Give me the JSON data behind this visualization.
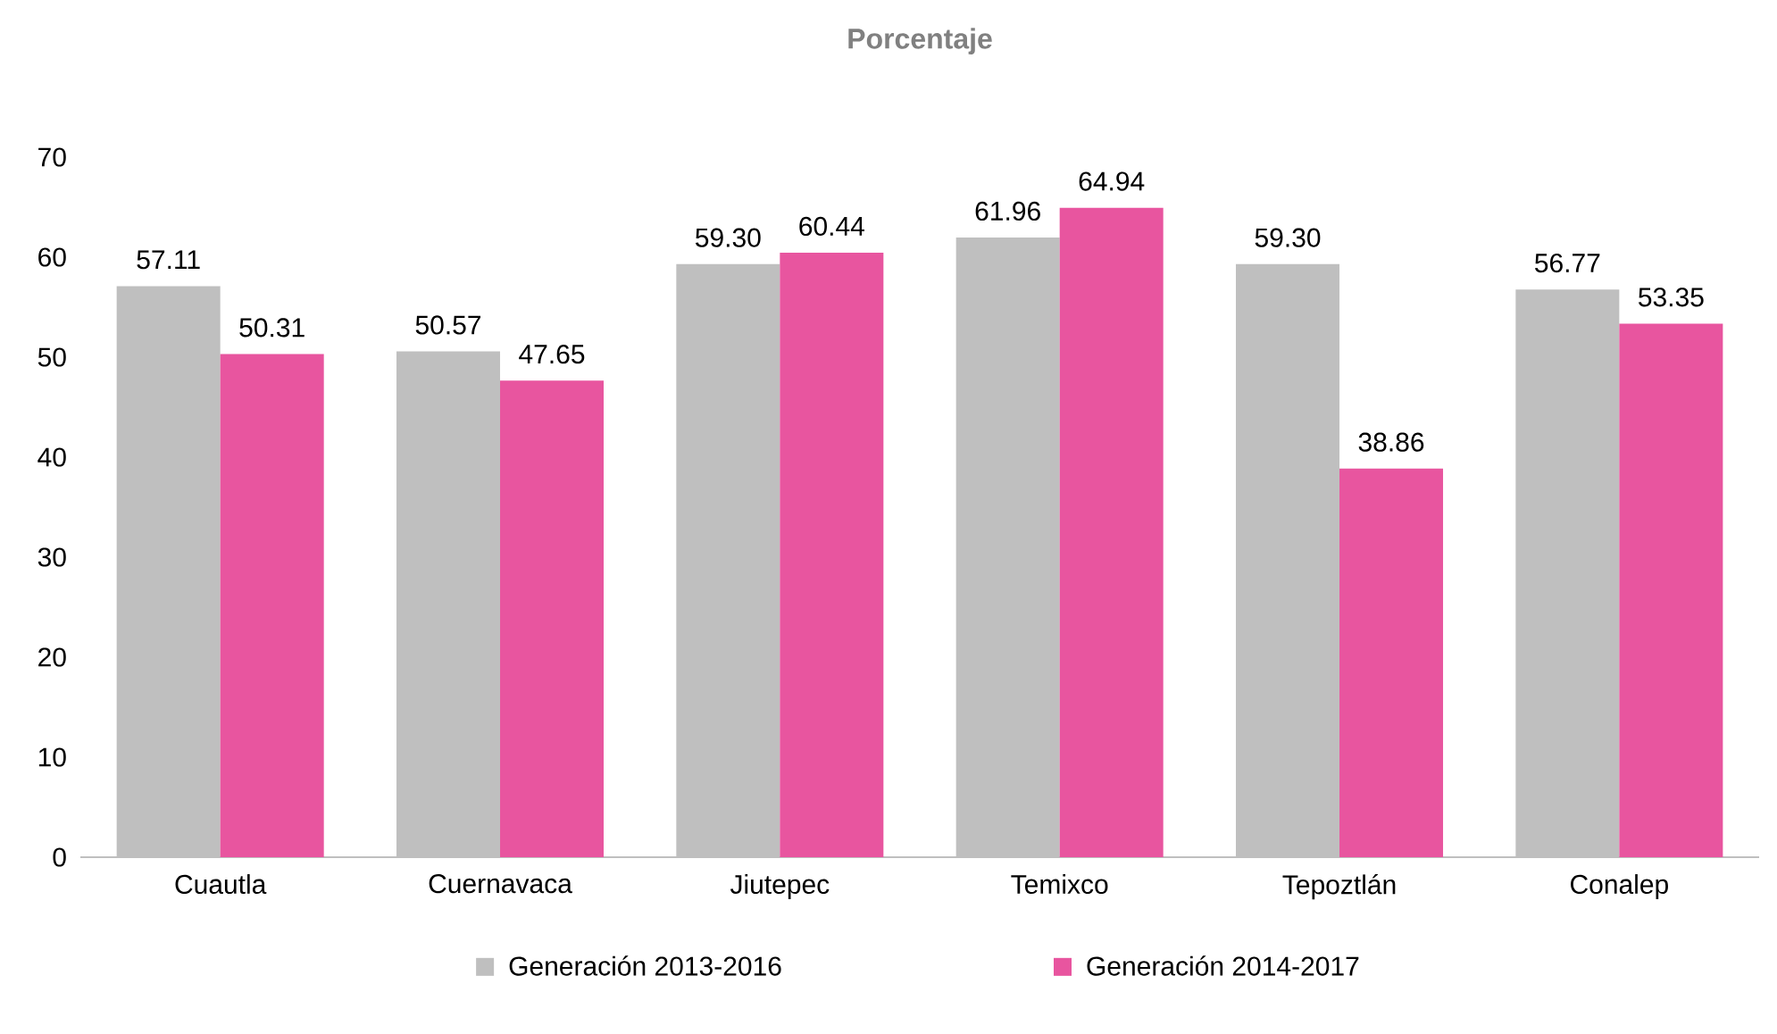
{
  "chart_data": {
    "type": "bar",
    "title": "Porcentaje",
    "categories": [
      "Cuautla",
      "Cuernavaca",
      "Jiutepec",
      "Temixco",
      "Tepoztlán",
      "Conalep"
    ],
    "series": [
      {
        "name": "Generación 2013-2016",
        "color": "#bfbfbf",
        "values": [
          57.11,
          50.57,
          59.3,
          61.96,
          59.3,
          56.77
        ],
        "value_labels": [
          "57.11",
          "50.57",
          "59.30",
          "61.96",
          "59.30",
          "56.77"
        ]
      },
      {
        "name": "Generación 2014-2017",
        "color": "#e8559f",
        "values": [
          50.31,
          47.65,
          60.44,
          64.94,
          38.86,
          53.35
        ],
        "value_labels": [
          "50.31",
          "47.65",
          "60.44",
          "64.94",
          "38.86",
          "53.35"
        ]
      }
    ],
    "ylim": [
      0,
      70
    ],
    "yticks": [
      0,
      10,
      20,
      30,
      40,
      50,
      60,
      70
    ],
    "grid": false,
    "legend": "bottom"
  }
}
